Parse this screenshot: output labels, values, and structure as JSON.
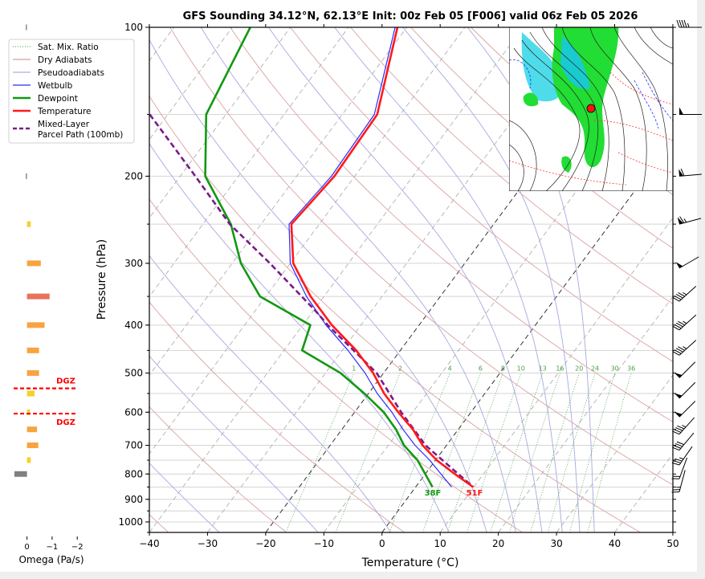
{
  "legend": [
    {
      "label": "Sat. Mix. Ratio",
      "color": "#3a9a3a",
      "style": "dotted"
    },
    {
      "label": "Dry Adiabats",
      "color": "#c98a8a",
      "style": "solid"
    },
    {
      "label": "Pseudoadiabats",
      "color": "#9a9ad8",
      "style": "solid"
    },
    {
      "label": "Wetbulb",
      "color": "#2a2aff",
      "style": "solid"
    },
    {
      "label": "Dewpoint",
      "color": "#119911",
      "style": "solid"
    },
    {
      "label": "Temperature",
      "color": "#ff1a1a",
      "style": "solid"
    },
    {
      "label": "Mixed-Layer",
      "label2": "Parcel Path (100mb)",
      "color": "#7a1a8a",
      "style": "dashed"
    }
  ],
  "surface_labels": {
    "dewpoint": "38F",
    "temperature": "51F"
  },
  "omega_panel": {
    "xlabel": "Omega (Pa/s)",
    "ticks": [
      "0",
      "−1",
      "−2"
    ],
    "tick_values": [
      0,
      -1,
      -2
    ],
    "levels": [
      {
        "p": 100,
        "omega": 0.02
      },
      {
        "p": 200,
        "omega": 0.02
      },
      {
        "p": 250,
        "omega": -0.15
      },
      {
        "p": 300,
        "omega": -0.55
      },
      {
        "p": 350,
        "omega": -0.9
      },
      {
        "p": 400,
        "omega": -0.7
      },
      {
        "p": 450,
        "omega": -0.48
      },
      {
        "p": 500,
        "omega": -0.48
      },
      {
        "p": 550,
        "omega": -0.3
      },
      {
        "p": 600,
        "omega": -0.12
      },
      {
        "p": 650,
        "omega": -0.4
      },
      {
        "p": 700,
        "omega": -0.45
      },
      {
        "p": 750,
        "omega": -0.15
      },
      {
        "p": 800,
        "omega": 0.5
      }
    ],
    "dgz": {
      "label": "DGZ",
      "pressures": [
        537,
        604
      ]
    },
    "colors": {
      "weak": "#f7cf2a",
      "moderate": "#f7a440",
      "strong": "#e8735a",
      "sinking": "#808080"
    }
  },
  "chart_data": {
    "type": "line",
    "title": "GFS Sounding 34.12°N, 62.13°E Init: 00z Feb 05 [F006] valid 06z Feb 05 2026",
    "xlabel": "Temperature (°C)",
    "ylabel": "Pressure (hPa)",
    "xlim": [
      -40,
      50
    ],
    "ylim": [
      1050,
      100
    ],
    "x_ticks": [
      "−40",
      "−30",
      "−20",
      "−10",
      "0",
      "10",
      "20",
      "30",
      "40",
      "50"
    ],
    "x_tick_values": [
      -40,
      -30,
      -20,
      -10,
      0,
      10,
      20,
      30,
      40,
      50
    ],
    "y_ticks": [
      "100",
      "200",
      "300",
      "400",
      "500",
      "600",
      "700",
      "800",
      "900",
      "1000"
    ],
    "y_tick_values": [
      100,
      200,
      300,
      400,
      500,
      600,
      700,
      800,
      900,
      1000
    ],
    "mixing_ratio_labels": [
      "1",
      "2",
      "4",
      "6",
      "8",
      "10",
      "13",
      "16",
      "20",
      "24",
      "30",
      "36"
    ],
    "mixing_ratio_values": [
      1,
      2,
      4,
      6,
      8,
      10,
      13,
      16,
      20,
      24,
      30,
      36
    ],
    "highlight_isotherms": [
      -20,
      0
    ],
    "series": [
      {
        "name": "Temperature",
        "color": "#ff1a1a",
        "p": [
          100,
          150,
          200,
          250,
          300,
          350,
          400,
          450,
          500,
          550,
          600,
          650,
          700,
          750,
          800,
          850
        ],
        "t": [
          -61.6,
          -54.0,
          -53.5,
          -54.8,
          -49.5,
          -42.3,
          -35.0,
          -27.6,
          -21.8,
          -17.3,
          -12.5,
          -7.8,
          -4.1,
          0.2,
          5.1,
          9.9
        ]
      },
      {
        "name": "Wetbulb",
        "color": "#2a2aff",
        "p": [
          100,
          150,
          200,
          250,
          300,
          350,
          400,
          450,
          500,
          550,
          600,
          650,
          700,
          750,
          800,
          850
        ],
        "t": [
          -62.0,
          -54.5,
          -54.0,
          -55.2,
          -50.0,
          -43.0,
          -36.0,
          -29.0,
          -23.2,
          -18.5,
          -13.6,
          -9.5,
          -5.4,
          -1.0,
          2.7,
          6.2
        ]
      },
      {
        "name": "Dewpoint",
        "color": "#119911",
        "p": [
          100,
          150,
          200,
          250,
          300,
          350,
          400,
          450,
          500,
          550,
          600,
          650,
          700,
          750,
          800,
          850
        ],
        "t": [
          -86.9,
          -83.4,
          -75.7,
          -65.2,
          -58.5,
          -51.0,
          -38.7,
          -36.9,
          -27.4,
          -20.7,
          -15.0,
          -10.7,
          -7.3,
          -3.1,
          0.0,
          2.9
        ]
      },
      {
        "name": "Mixed-Layer Parcel Path (100mb)",
        "color": "#7a1a8a",
        "p": [
          150,
          200,
          250,
          300,
          375,
          400,
          500,
          600,
          700,
          850
        ],
        "t": [
          -93.1,
          -77.4,
          -65.4,
          -53.5,
          -39.5,
          -35.7,
          -21.2,
          -12.0,
          -3.6,
          9.9
        ]
      }
    ],
    "wind_barbs": [
      {
        "p": 100,
        "dir": 270,
        "kt": 45
      },
      {
        "p": 150,
        "dir": 270,
        "kt": 50
      },
      {
        "p": 200,
        "dir": 265,
        "kt": 60
      },
      {
        "p": 250,
        "dir": 255,
        "kt": 65
      },
      {
        "p": 300,
        "dir": 240,
        "kt": 50
      },
      {
        "p": 350,
        "dir": 228,
        "kt": 45
      },
      {
        "p": 400,
        "dir": 228,
        "kt": 45
      },
      {
        "p": 450,
        "dir": 228,
        "kt": 45
      },
      {
        "p": 500,
        "dir": 225,
        "kt": 50
      },
      {
        "p": 550,
        "dir": 225,
        "kt": 50
      },
      {
        "p": 600,
        "dir": 225,
        "kt": 50
      },
      {
        "p": 650,
        "dir": 222,
        "kt": 45
      },
      {
        "p": 700,
        "dir": 220,
        "kt": 40
      },
      {
        "p": 750,
        "dir": 215,
        "kt": 35
      },
      {
        "p": 800,
        "dir": 200,
        "kt": 20
      },
      {
        "p": 850,
        "dir": 195,
        "kt": 25
      }
    ]
  }
}
